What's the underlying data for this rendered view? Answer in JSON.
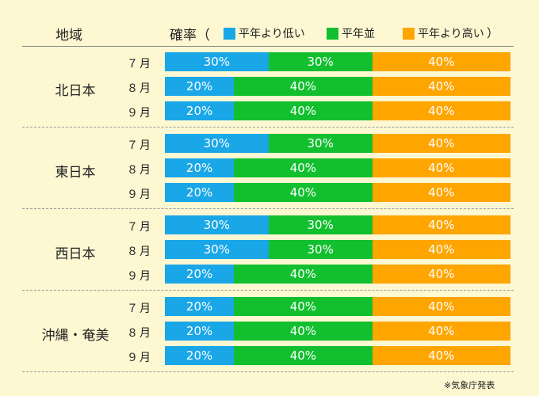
{
  "header": {
    "region_label": "地域",
    "prob_label": "確率（",
    "paren_close": "）"
  },
  "legend": [
    {
      "label": "平年より低い",
      "color": "#1aa7e8"
    },
    {
      "label": "平年並",
      "color": "#12c02f"
    },
    {
      "label": "平年より高い",
      "color": "#ffa500"
    }
  ],
  "chart_data": {
    "type": "bar",
    "orientation": "horizontal",
    "stacked": true,
    "unit": "%",
    "series_names": [
      "平年より低い",
      "平年並",
      "平年より高い"
    ],
    "colors": [
      "#1aa7e8",
      "#12c02f",
      "#ffa500"
    ],
    "regions": [
      {
        "name": "北日本",
        "rows": [
          {
            "month": "７月",
            "values": [
              30,
              30,
              40
            ]
          },
          {
            "month": "８月",
            "values": [
              20,
              40,
              40
            ]
          },
          {
            "month": "９月",
            "values": [
              20,
              40,
              40
            ]
          }
        ]
      },
      {
        "name": "東日本",
        "rows": [
          {
            "month": "７月",
            "values": [
              30,
              30,
              40
            ]
          },
          {
            "month": "８月",
            "values": [
              20,
              40,
              40
            ]
          },
          {
            "month": "９月",
            "values": [
              20,
              40,
              40
            ]
          }
        ]
      },
      {
        "name": "西日本",
        "rows": [
          {
            "month": "７月",
            "values": [
              30,
              30,
              40
            ]
          },
          {
            "month": "８月",
            "values": [
              30,
              30,
              40
            ]
          },
          {
            "month": "９月",
            "values": [
              20,
              40,
              40
            ]
          }
        ]
      },
      {
        "name": "沖縄・奄美",
        "rows": [
          {
            "month": "７月",
            "values": [
              20,
              40,
              40
            ]
          },
          {
            "month": "８月",
            "values": [
              20,
              40,
              40
            ]
          },
          {
            "month": "９月",
            "values": [
              20,
              40,
              40
            ]
          }
        ]
      }
    ]
  },
  "source": "※気象庁発表"
}
